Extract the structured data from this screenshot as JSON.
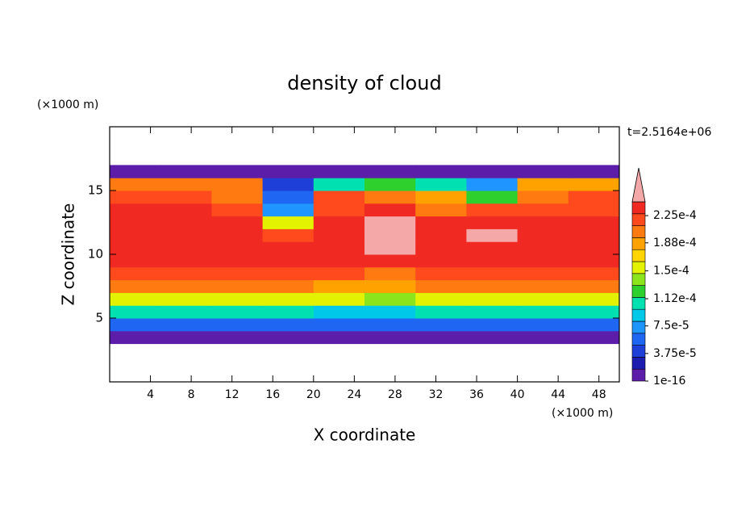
{
  "chart_data": {
    "type": "contour",
    "title": "density of cloud",
    "time_label": "t=2.5164e+06",
    "x_label": "X coordinate",
    "y_label": "Z coordinate",
    "x_unit": "(×1000 m)",
    "y_unit": "(×1000 m)",
    "xlim": [
      0,
      50
    ],
    "ylim": [
      0,
      20
    ],
    "xticks": [
      4,
      8,
      12,
      16,
      20,
      24,
      28,
      32,
      36,
      40,
      44,
      48
    ],
    "yticks": [
      5,
      10,
      15
    ],
    "x": [
      2.5,
      7.5,
      12.5,
      17.5,
      22.5,
      27.5,
      32.5,
      37.5,
      42.5,
      47.5
    ],
    "z": [
      3.5,
      4.5,
      5.5,
      6.5,
      7.5,
      8.5,
      9.5,
      10.5,
      11.5,
      12.5,
      13.5,
      14.5,
      15.5,
      16.5
    ],
    "values": [
      [
        1.5e-05,
        1.5e-05,
        1.5e-05,
        1.5e-05,
        1.5e-05,
        1.5e-05,
        1.5e-05,
        1.5e-05,
        1.5e-05,
        1.5e-05
      ],
      [
        6e-05,
        6e-05,
        6e-05,
        6e-05,
        5e-05,
        5e-05,
        6e-05,
        6e-05,
        6e-05,
        6e-05
      ],
      [
        0.00011,
        0.00011,
        0.00011,
        0.00011,
        9e-05,
        9e-05,
        0.0001,
        0.00011,
        0.00011,
        0.00011
      ],
      [
        0.00016,
        0.00016,
        0.00016,
        0.00016,
        0.00015,
        0.00014,
        0.00015,
        0.00016,
        0.00016,
        0.00016
      ],
      [
        0.0002,
        0.0002,
        0.0002,
        0.0002,
        0.00019,
        0.00018,
        0.0002,
        0.0002,
        0.0002,
        0.0002
      ],
      [
        0.00022,
        0.00022,
        0.00022,
        0.00022,
        0.00022,
        0.00021,
        0.00022,
        0.00022,
        0.00022,
        0.00022
      ],
      [
        0.00023,
        0.00023,
        0.00023,
        0.00023,
        0.00023,
        0.00023,
        0.00023,
        0.00023,
        0.00023,
        0.00023
      ],
      [
        0.000235,
        0.000235,
        0.000235,
        0.000235,
        0.000235,
        0.00025,
        0.000235,
        0.00024,
        0.000235,
        0.000235
      ],
      [
        0.000235,
        0.000235,
        0.000235,
        0.00022,
        0.000235,
        0.00025,
        0.000235,
        0.00025,
        0.000235,
        0.000235
      ],
      [
        0.000235,
        0.000235,
        0.00023,
        0.00015,
        0.00023,
        0.00025,
        0.00023,
        0.00024,
        0.00023,
        0.00023
      ],
      [
        0.00023,
        0.00023,
        0.000225,
        8e-05,
        0.000225,
        0.00023,
        0.0002,
        0.000225,
        0.000225,
        0.000225
      ],
      [
        0.00022,
        0.00022,
        0.00021,
        5e-05,
        0.00022,
        0.0002,
        0.00018,
        0.00012,
        0.00021,
        0.00022
      ],
      [
        0.00021,
        0.00021,
        0.0002,
        4e-05,
        0.0001,
        0.00012,
        0.0001,
        8e-05,
        0.00018,
        0.00019
      ],
      [
        4e-06,
        4e-06,
        2e-06,
        1e-06,
        2e-06,
        1e-06,
        1e-06,
        1e-06,
        2e-06,
        3e-06
      ]
    ],
    "clim": [
      1e-16,
      0.00024375
    ],
    "colors": [
      "#5c1ea8",
      "#1c1cb0",
      "#1e3fd8",
      "#1f66f2",
      "#1e95ff",
      "#00c8e8",
      "#00e0b0",
      "#2ed02e",
      "#8ce41c",
      "#e2f200",
      "#ffd500",
      "#ffa200",
      "#ff7a10",
      "#ff4a1e",
      "#f02a22"
    ],
    "extend_color": "#f5a8a8",
    "cticks": [
      {
        "value": 1e-16,
        "label": "1e-16"
      },
      {
        "value": 3.75e-05,
        "label": "3.75e-5"
      },
      {
        "value": 7.5e-05,
        "label": "7.5e-5"
      },
      {
        "value": 0.000112,
        "label": "1.12e-4"
      },
      {
        "value": 0.00015,
        "label": "1.5e-4"
      },
      {
        "value": 0.000188,
        "label": "1.88e-4"
      },
      {
        "value": 0.000225,
        "label": "2.25e-4"
      }
    ]
  }
}
